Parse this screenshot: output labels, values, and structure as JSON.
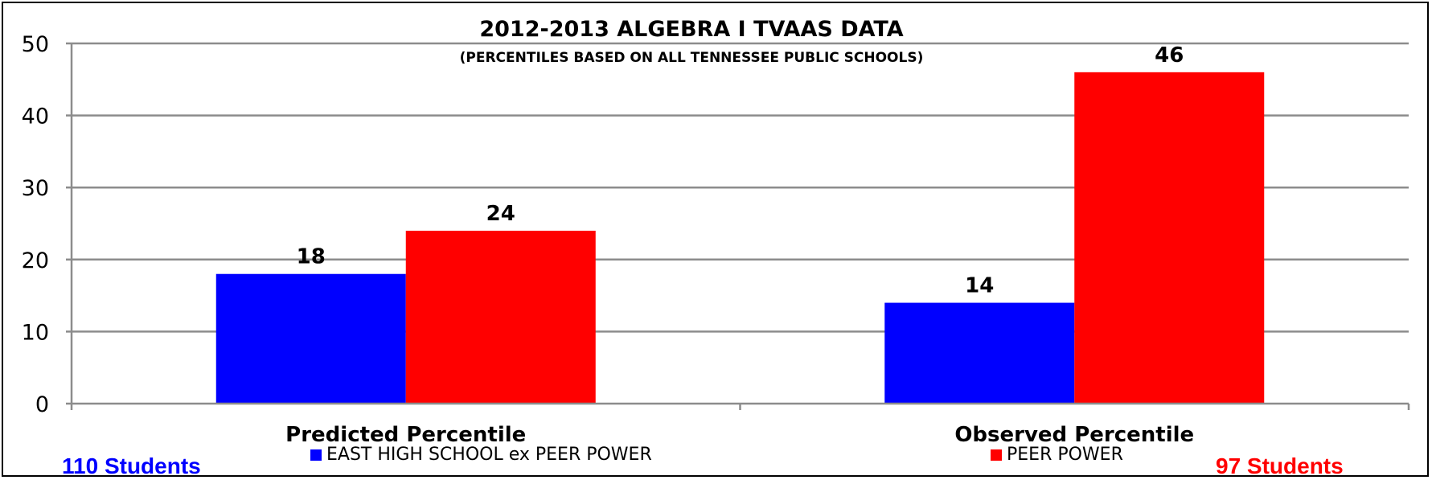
{
  "chart_data": {
    "type": "bar",
    "title": "2012-2013 ALGEBRA I TVAAS DATA",
    "subtitle": "(PERCENTILES BASED ON ALL TENNESSEE PUBLIC SCHOOLS)",
    "categories": [
      "Predicted Percentile",
      "Observed Percentile"
    ],
    "series": [
      {
        "name": "EAST HIGH SCHOOL ex PEER POWER",
        "values": [
          18,
          14
        ],
        "color": "#0000ff"
      },
      {
        "name": "PEER POWER",
        "values": [
          24,
          46
        ],
        "color": "#ff0000"
      }
    ],
    "ylim": [
      0,
      50
    ],
    "yticks": [
      0,
      10,
      20,
      30,
      40,
      50
    ],
    "grid": true,
    "legend": "bottom",
    "data_labels": true
  },
  "annotations": {
    "left_students": {
      "text": "110 Students",
      "color": "#0000ff"
    },
    "right_students": {
      "text": "97 Students",
      "color": "#ff0000"
    }
  }
}
